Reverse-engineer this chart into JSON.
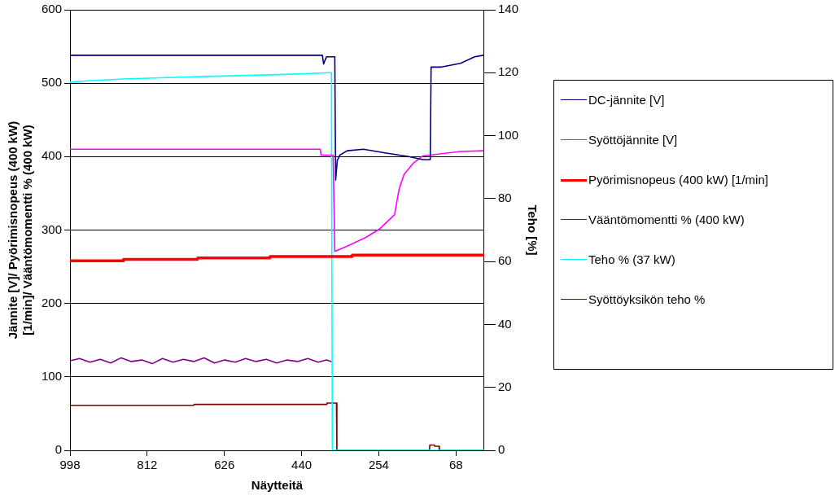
{
  "chart_data": {
    "type": "line",
    "xlabel": "Näytteitä",
    "ylabel": "Jännite [V]/ Pyörimisnopeus (400 kW) [1/min]/ Vääntömomentti % (400 kW)",
    "y2label": "Teho [%]",
    "xlim": [
      998,
      0
    ],
    "xticks": [
      998,
      812,
      626,
      440,
      254,
      68
    ],
    "ylim": [
      0,
      600
    ],
    "yticks": [
      0,
      100,
      200,
      300,
      400,
      500,
      600
    ],
    "y2lim": [
      0,
      140
    ],
    "y2ticks": [
      0,
      20,
      40,
      60,
      80,
      100,
      120,
      140
    ],
    "grid": "y",
    "legend": "right",
    "marker": "none",
    "line_style": "solid",
    "series": [
      {
        "name": "DC-jännite [V]",
        "color": "#000080",
        "x": [
          998,
          900,
          800,
          700,
          600,
          500,
          420,
          390,
          387,
          383,
          380,
          360,
          358,
          354,
          348,
          330,
          291,
          239,
          182,
          148,
          130,
          128,
          103,
          57,
          23,
          2
        ],
        "values": [
          538,
          538,
          538,
          538,
          538,
          538,
          538,
          538,
          526,
          532,
          536,
          536,
          368,
          395,
          402,
          408,
          410,
          405,
          400,
          396,
          396,
          522,
          522,
          527,
          536,
          538
        ]
      },
      {
        "name": "Syöttöjännite [V]",
        "color": "#ff00ff",
        "x": [
          998,
          700,
          395,
          393,
          364,
          360,
          330,
          285,
          251,
          216,
          205,
          193,
          171,
          148,
          103,
          57,
          2
        ],
        "values": [
          410,
          410,
          410,
          402,
          402,
          271,
          278,
          290,
          302,
          321,
          356,
          376,
          391,
          401,
          404,
          407,
          408
        ]
      },
      {
        "name": "Pyörimisnopeus (400 kW) [1/min]",
        "color": "#ff0000",
        "x": [
          998,
          870,
          869,
          691,
          690,
          517,
          516,
          319,
          318,
          0
        ],
        "values": [
          258,
          258,
          260,
          260,
          262,
          262,
          264,
          264,
          266,
          266
        ]
      },
      {
        "name": "Vääntömomentti % (400 kW)",
        "color": "#800080",
        "x": [
          998,
          975,
          950,
          925,
          900,
          875,
          850,
          825,
          800,
          775,
          750,
          725,
          700,
          675,
          650,
          625,
          600,
          575,
          550,
          525,
          500,
          475,
          450,
          425,
          400,
          380,
          368
        ],
        "values": [
          122,
          125,
          120,
          124,
          119,
          126,
          121,
          123,
          118,
          125,
          120,
          124,
          121,
          126,
          119,
          123,
          120,
          125,
          121,
          124,
          119,
          123,
          121,
          125,
          120,
          123,
          121
        ]
      },
      {
        "name": "Teho % (37 kW)",
        "color": "#00ffff",
        "axis": "y2",
        "x": [
          998,
          950,
          870,
          700,
          550,
          450,
          372,
          368,
          366,
          0
        ],
        "values": [
          117,
          117.5,
          118,
          118.7,
          119.2,
          119.6,
          120,
          120,
          0,
          0
        ]
      },
      {
        "name": "Syöttöyksikön teho %",
        "color": "#800000",
        "axis": "y2",
        "x": [
          998,
          700,
          699,
          380,
          379,
          356,
          355,
          132,
          131,
          120,
          119,
          109,
          108,
          0
        ],
        "values": [
          14.3,
          14.3,
          14.6,
          14.6,
          15,
          15,
          0,
          0,
          1.7,
          1.7,
          1.3,
          1.3,
          0,
          0
        ]
      }
    ]
  }
}
